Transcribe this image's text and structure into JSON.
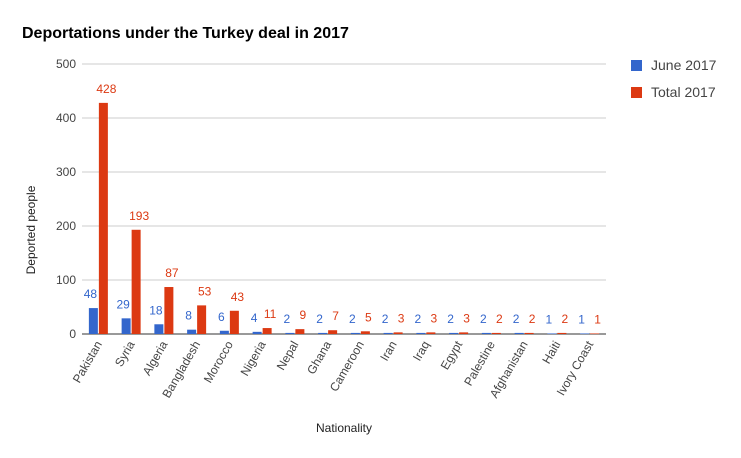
{
  "chart_data": {
    "type": "bar",
    "title": "Deportations under the Turkey deal in 2017",
    "xlabel": "Nationality",
    "ylabel": "Deported people",
    "ylim": [
      0,
      500
    ],
    "yticks": [
      "0",
      "100",
      "200",
      "300",
      "400",
      "500"
    ],
    "grid": true,
    "legend_position": "right",
    "categories": [
      "Pakistan",
      "Syria",
      "Algeria",
      "Bangladesh",
      "Morocco",
      "Nigeria",
      "Nepal",
      "Ghana",
      "Cameroon",
      "Iran",
      "Iraq",
      "Egypt",
      "Palestine",
      "Afghanistan",
      "Haiti",
      "Ivory Coast"
    ],
    "series": [
      {
        "name": "June 2017",
        "color": "#3366cc",
        "values": [
          48,
          29,
          18,
          8,
          6,
          4,
          2,
          2,
          2,
          2,
          2,
          2,
          2,
          2,
          1,
          1
        ]
      },
      {
        "name": "Total 2017",
        "color": "#dc3912",
        "values": [
          428,
          193,
          87,
          53,
          43,
          11,
          9,
          7,
          5,
          3,
          3,
          3,
          2,
          2,
          2,
          1
        ]
      }
    ]
  }
}
